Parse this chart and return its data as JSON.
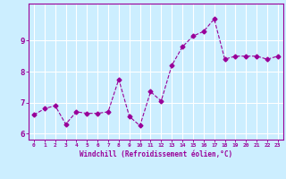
{
  "x": [
    0,
    1,
    2,
    3,
    4,
    5,
    6,
    7,
    8,
    9,
    10,
    11,
    12,
    13,
    14,
    15,
    16,
    17,
    18,
    19,
    20,
    21,
    22,
    23
  ],
  "y": [
    6.6,
    6.8,
    6.9,
    6.3,
    6.7,
    6.65,
    6.65,
    6.7,
    7.75,
    6.55,
    6.25,
    7.35,
    7.05,
    8.2,
    8.8,
    9.15,
    9.3,
    9.7,
    8.4,
    8.5,
    8.5,
    8.5,
    8.4,
    8.5
  ],
  "line_color": "#990099",
  "marker": "D",
  "marker_size": 2.5,
  "bg_color": "#cceeff",
  "grid_color": "#ffffff",
  "xlabel": "Windchill (Refroidissement éolien,°C)",
  "ylabel": "",
  "xlim": [
    -0.5,
    23.5
  ],
  "ylim": [
    5.8,
    10.2
  ],
  "yticks": [
    6,
    7,
    8,
    9
  ],
  "xticks": [
    0,
    1,
    2,
    3,
    4,
    5,
    6,
    7,
    8,
    9,
    10,
    11,
    12,
    13,
    14,
    15,
    16,
    17,
    18,
    19,
    20,
    21,
    22,
    23
  ],
  "xlabel_color": "#990099",
  "tick_color": "#990099",
  "axis_color": "#990099"
}
